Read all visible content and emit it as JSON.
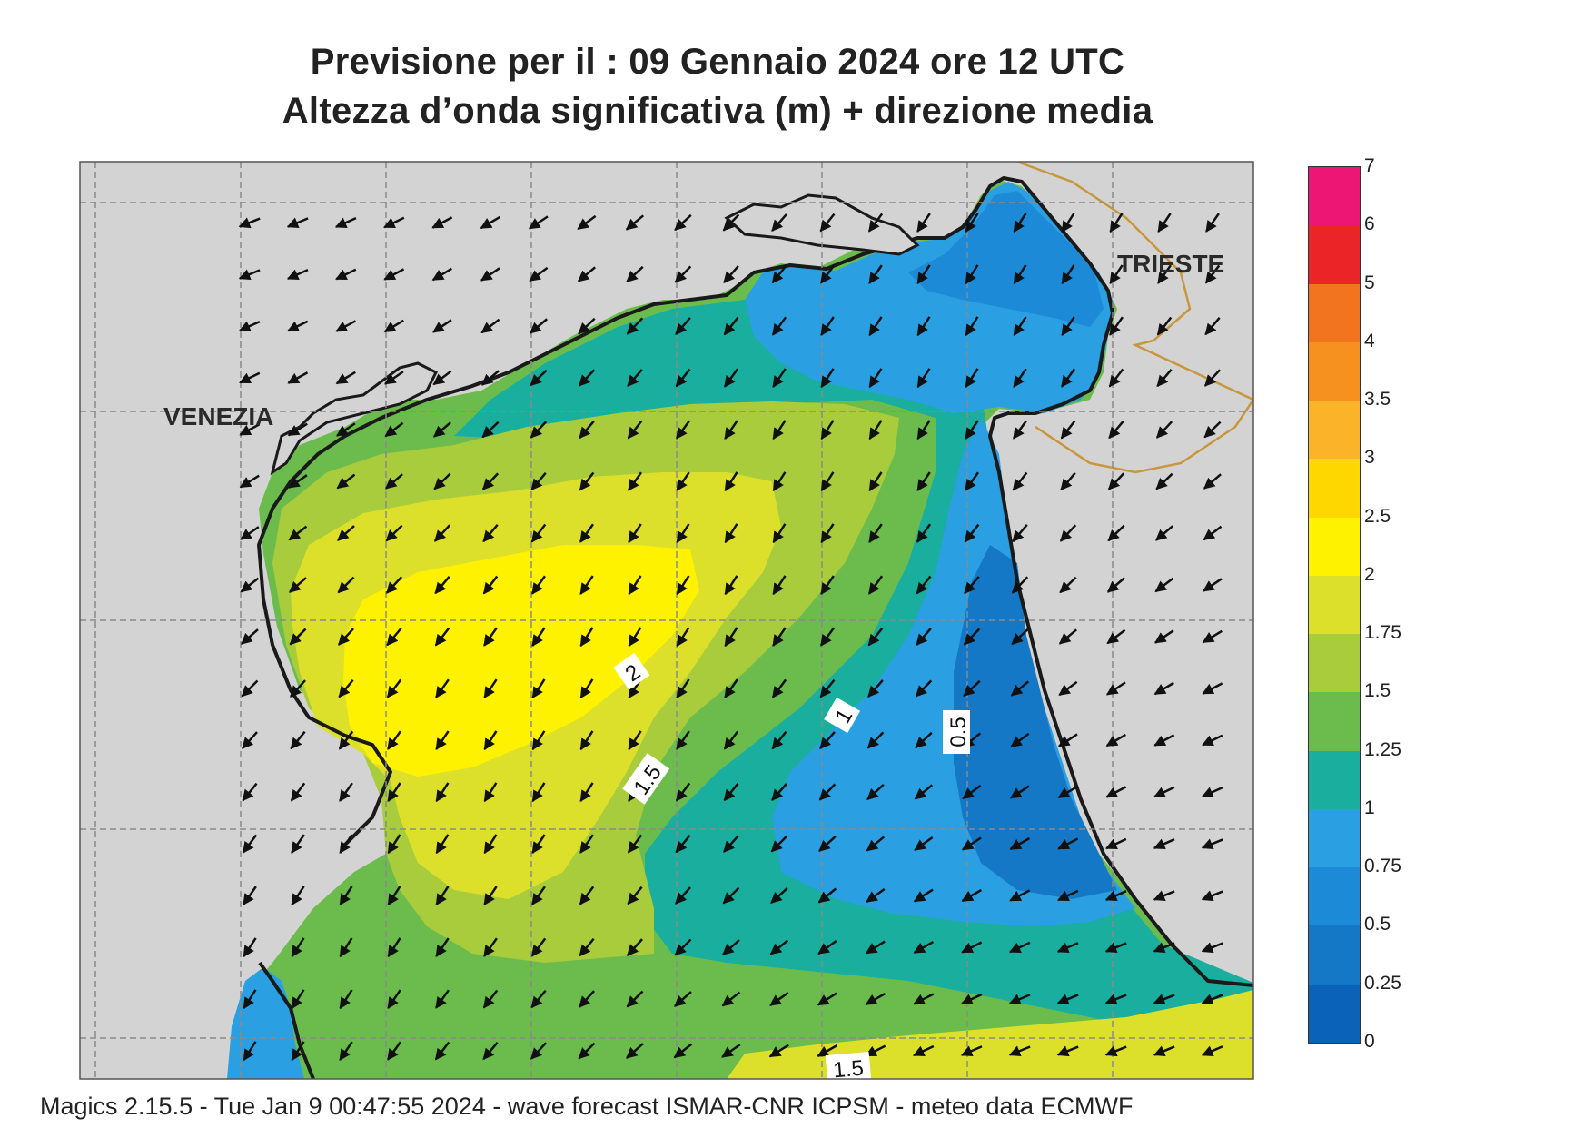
{
  "header": {
    "title_line1": "Previsione per il  :  09  Gennaio  2024   ore 12 UTC",
    "title_line2": "Altezza d’onda significativa (m) + direzione media"
  },
  "map": {
    "place_labels": [
      "VENEZIA",
      "TRIESTE"
    ],
    "contour_labels": [
      "2",
      "1.5",
      "1",
      "0.5",
      "1.5"
    ],
    "colors": {
      "land": "#d3d3d3",
      "coastline": "#1a1a1a",
      "border": "#c8963c",
      "grid": "#8a8a8a"
    }
  },
  "legend": {
    "ticks": [
      "0",
      "0.25",
      "0.5",
      "0.75",
      "1",
      "1.25",
      "1.5",
      "1.75",
      "2",
      "2.5",
      "3",
      "3.5",
      "4",
      "5",
      "6",
      "7"
    ],
    "colors": [
      "#0a63b8",
      "#1478c7",
      "#1c8ad6",
      "#2a9fe2",
      "#19ae9e",
      "#6bbc4c",
      "#a8cc3c",
      "#dde02a",
      "#fff200",
      "#ffd700",
      "#fbb32a",
      "#f6901e",
      "#f3741f",
      "#ea2427",
      "#ee1675"
    ]
  },
  "footer": {
    "text": "Magics 2.15.5 - Tue Jan  9 00:47:55 2024 - wave forecast  ISMAR-CNR  ICPSM - meteo data   ECMWF"
  }
}
